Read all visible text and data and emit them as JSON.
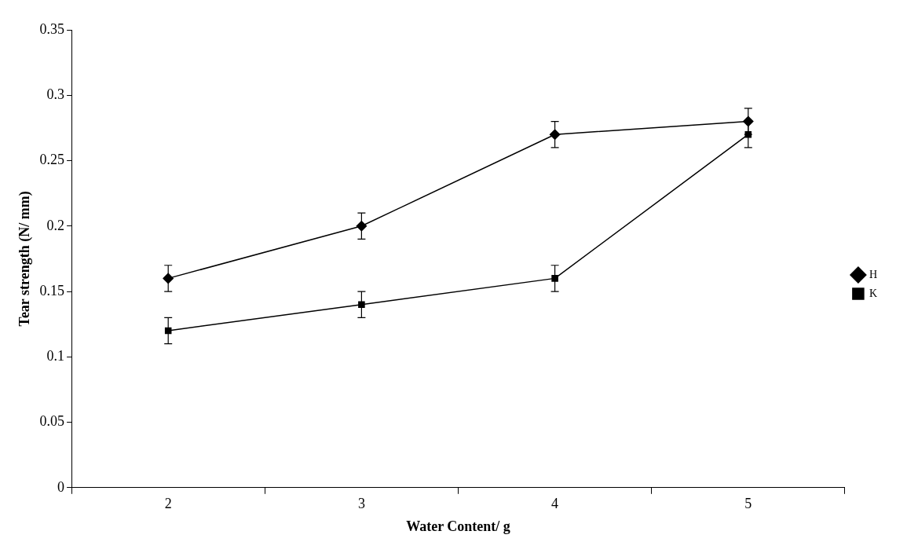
{
  "chart_data": {
    "type": "line",
    "xlabel": "Water Content/ g",
    "ylabel": "Tear strength (N/ mm)",
    "categories": [
      "2",
      "3",
      "4",
      "5"
    ],
    "series": [
      {
        "name": "H",
        "color": "#000000",
        "marker": "diamond",
        "values": [
          0.16,
          0.2,
          0.27,
          0.28
        ],
        "errors": [
          0.01,
          0.01,
          0.01,
          0.01
        ]
      },
      {
        "name": "K",
        "color": "#000000",
        "marker": "square",
        "values": [
          0.12,
          0.14,
          0.16,
          0.27
        ],
        "errors": [
          0.01,
          0.01,
          0.01,
          0.01
        ]
      }
    ],
    "ylim": [
      0,
      0.35
    ],
    "yticks": [
      0,
      0.05,
      0.1,
      0.15,
      0.2,
      0.25,
      0.3,
      0.35
    ],
    "grid": false,
    "legend": "right",
    "line_style": "solid"
  }
}
